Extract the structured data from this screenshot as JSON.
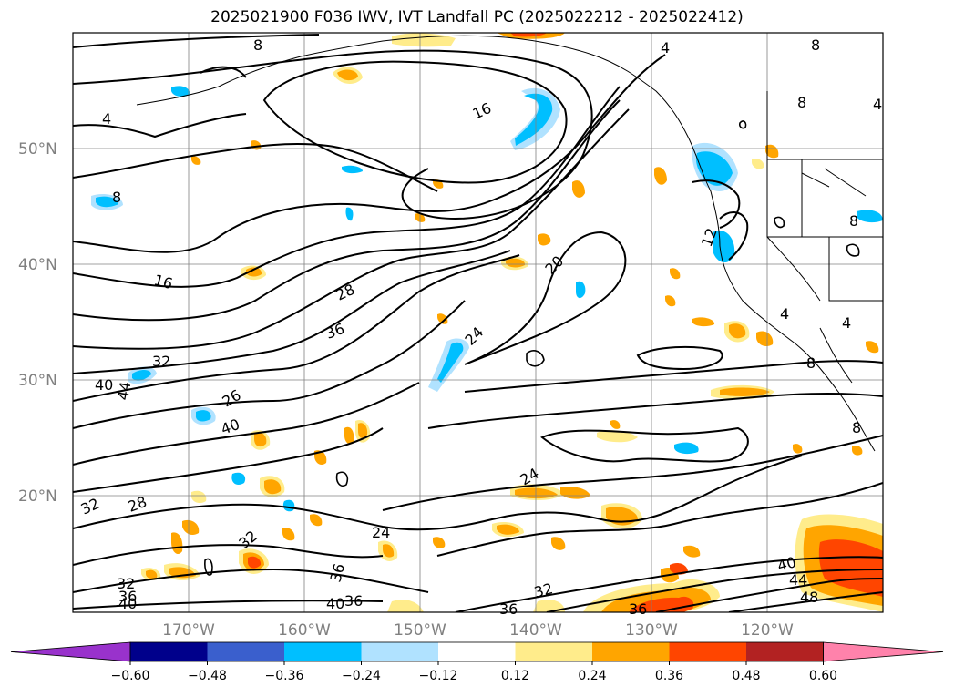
{
  "title": "2025021900 F036 IWV, IVT Landfall PC (2025022212 - 2025022412)",
  "lat_labels": [
    "50°N",
    "40°N",
    "30°N",
    "20°N"
  ],
  "lon_labels": [
    "170°W",
    "160°W",
    "150°W",
    "140°W",
    "130°W",
    "120°W"
  ],
  "contour_labels": [
    "16",
    "16",
    "8",
    "8",
    "4",
    "4",
    "8",
    "8",
    "12",
    "20",
    "24",
    "28",
    "36",
    "32",
    "40",
    "44",
    "26",
    "40",
    "32",
    "28",
    "32",
    "24",
    "24",
    "36",
    "32",
    "40",
    "36",
    "40",
    "36",
    "32",
    "36",
    "40",
    "44",
    "48",
    "4",
    "4",
    "8",
    "8",
    "8",
    "4",
    "36"
  ],
  "colorbar": {
    "ticks": [
      "−0.60",
      "−0.48",
      "−0.36",
      "−0.24",
      "−0.12",
      "0.12",
      "0.24",
      "0.36",
      "0.48",
      "0.60"
    ],
    "colors": [
      "#9932cc",
      "#00008b",
      "#3a5fcd",
      "#00bfff",
      "#b0e2ff",
      "#ffffff",
      "#ffec8b",
      "#ffa500",
      "#ff4500",
      "#b22222",
      "#ff82ab"
    ]
  },
  "fill_colors": {
    "light_blue": "#b0e2ff",
    "blue": "#00bfff",
    "light_yellow": "#ffec8b",
    "orange": "#ffa500",
    "red_orange": "#ff4500"
  }
}
